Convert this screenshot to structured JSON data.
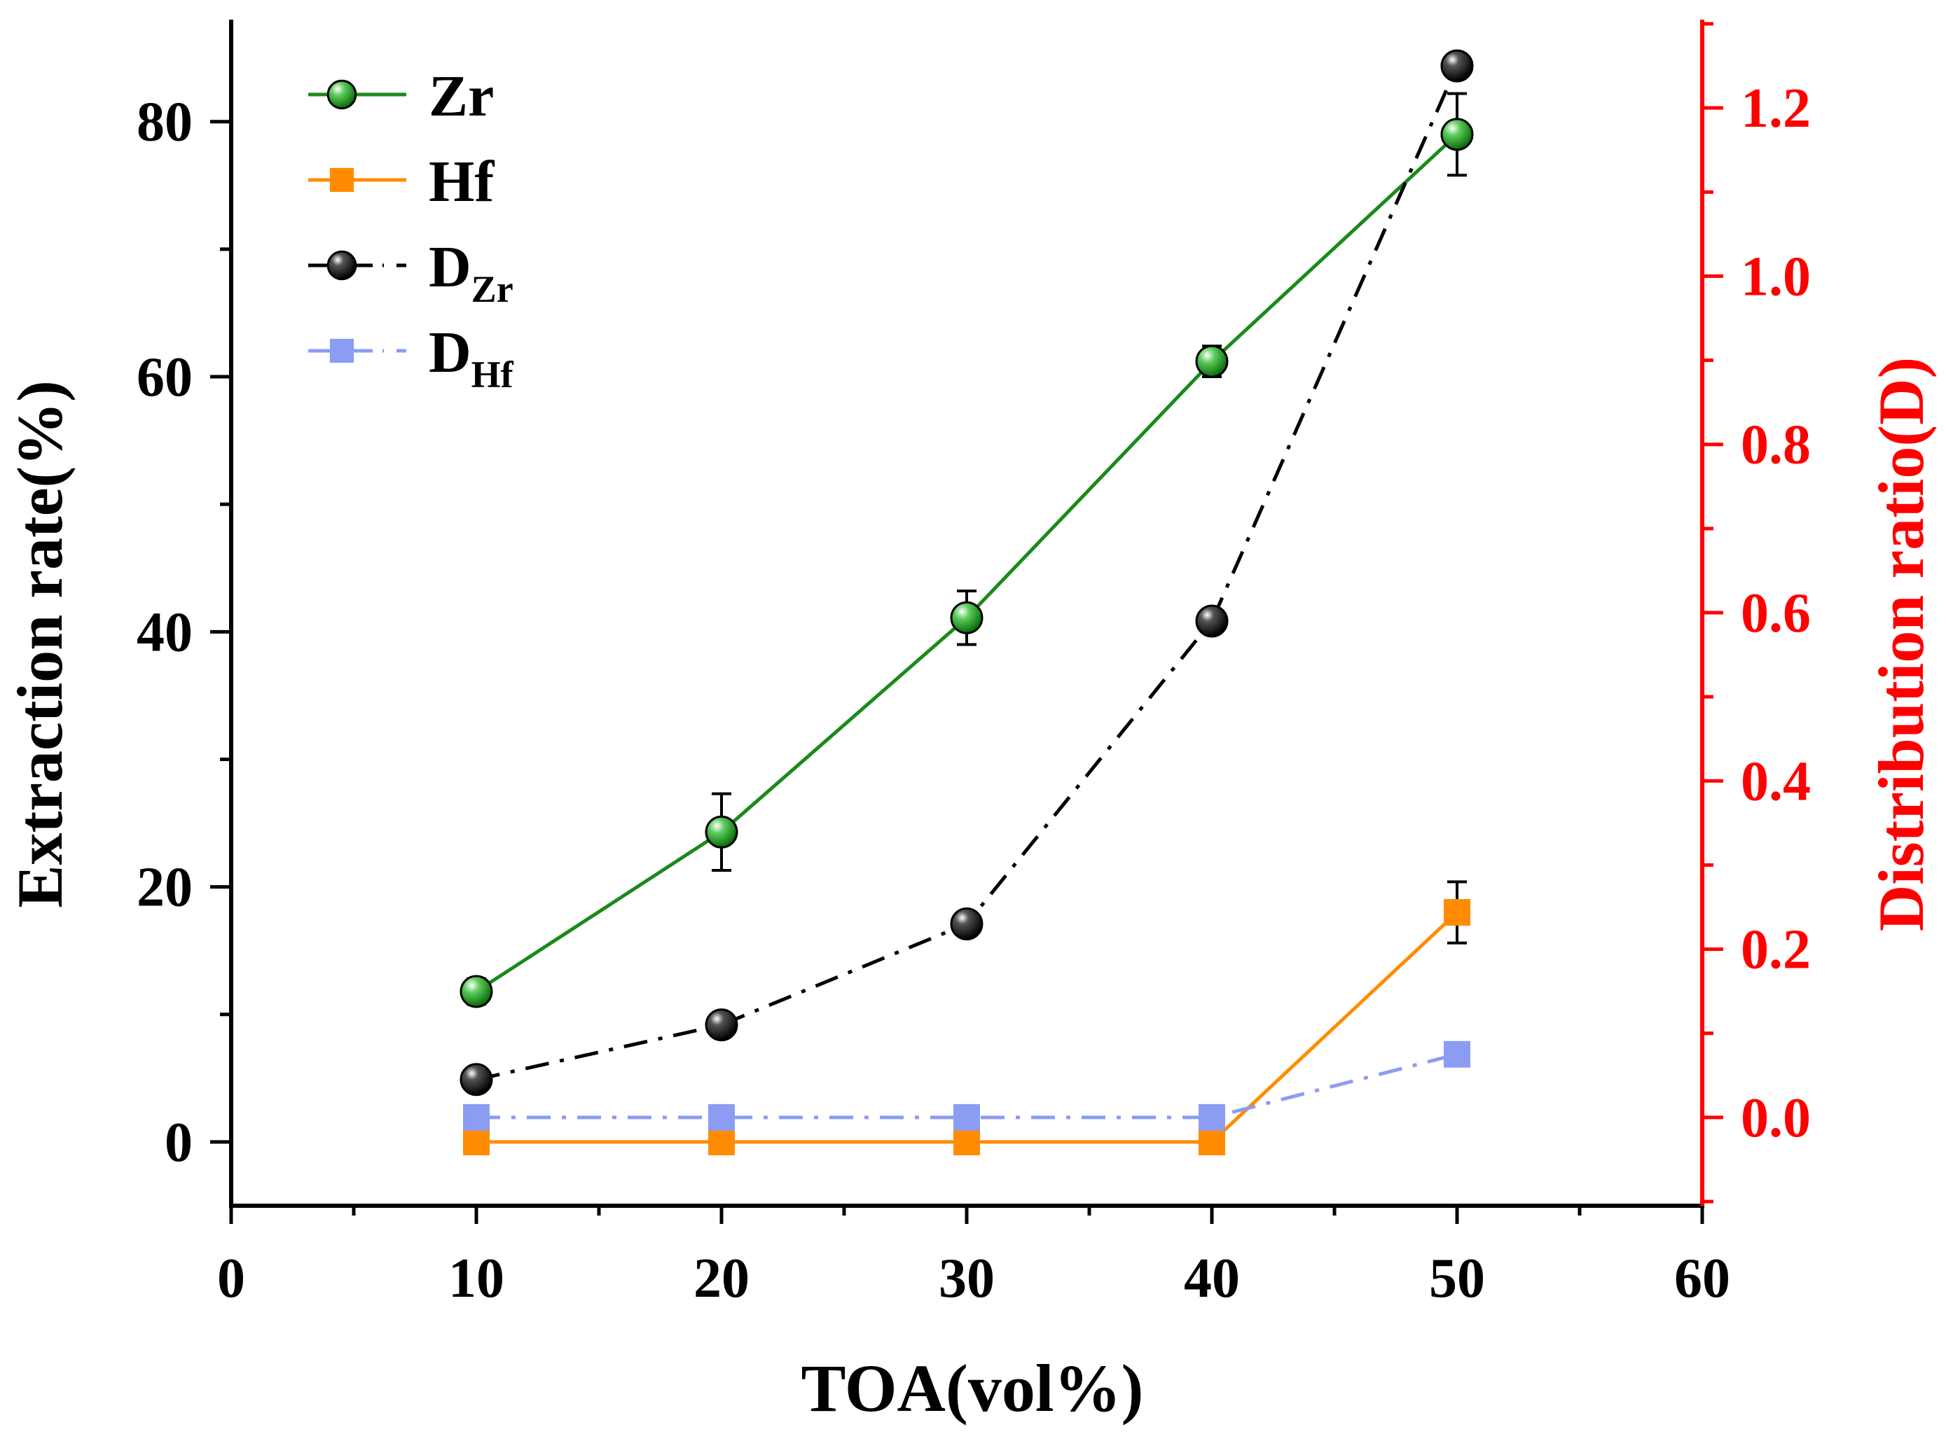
{
  "chart_data": {
    "type": "line",
    "x": [
      10,
      20,
      30,
      40,
      50
    ],
    "xlabel": "TOA(vol%)",
    "xlim": [
      0,
      60
    ],
    "xticks": [
      0,
      10,
      20,
      30,
      40,
      50,
      60
    ],
    "left_axis": {
      "label": "Extraction rate(%)",
      "ylim": [
        -5,
        88
      ],
      "ticks": [
        0,
        20,
        40,
        60,
        80
      ]
    },
    "right_axis": {
      "label": "Distribution ratio(D)",
      "ylim": [
        -0.105,
        1.305
      ],
      "ticks": [
        0.0,
        0.2,
        0.4,
        0.6,
        0.8,
        1.0,
        1.2
      ],
      "tick_labels": [
        "0.0",
        "0.2",
        "0.4",
        "0.6",
        "0.8",
        "1.0",
        "1.2"
      ],
      "color": "#ff0000"
    },
    "series": [
      {
        "name": "Zr",
        "legend_main": "Zr",
        "legend_sub": "",
        "axis": "left",
        "values": [
          11.8,
          24.3,
          41.1,
          61.2,
          79.0
        ],
        "errors": [
          1.0,
          3.0,
          2.1,
          1.2,
          3.2
        ],
        "color": "#1a8a1a",
        "marker": "sphere",
        "line": "solid"
      },
      {
        "name": "Hf",
        "legend_main": "Hf",
        "legend_sub": "",
        "axis": "left",
        "values": [
          0,
          0,
          0,
          0,
          18.0
        ],
        "errors": [
          0,
          0,
          0,
          0,
          2.4
        ],
        "color": "#ff8c00",
        "marker": "square",
        "line": "solid"
      },
      {
        "name": "DZr",
        "legend_main": "D",
        "legend_sub": "Zr",
        "axis": "right",
        "values": [
          0.045,
          0.11,
          0.23,
          0.59,
          1.25
        ],
        "color": "#000000",
        "marker": "sphere",
        "line": "dashdot"
      },
      {
        "name": "DHf",
        "legend_main": "D",
        "legend_sub": "Hf",
        "axis": "right",
        "values": [
          0.0,
          0.0,
          0.0,
          0.0,
          0.075
        ],
        "color": "#8c9cf2",
        "marker": "square",
        "line": "dashdot"
      }
    ],
    "legend_position": "top-left"
  }
}
